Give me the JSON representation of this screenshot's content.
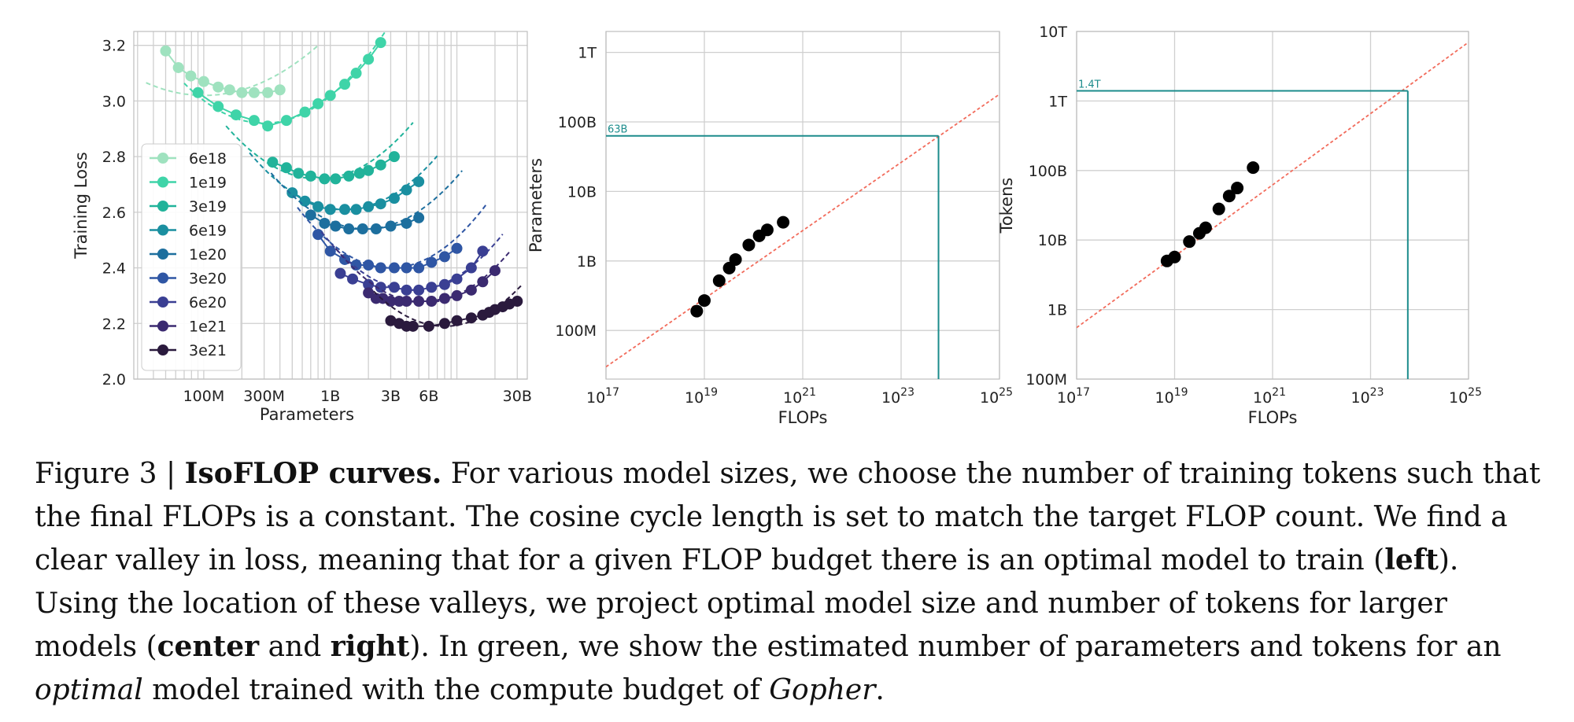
{
  "chart_data": [
    {
      "type": "line",
      "ylabel": "Training Loss",
      "xlabel": "Parameters",
      "xscale": "log",
      "xlim": [
        28000000.0,
        36000000000.0
      ],
      "ylim": [
        2.0,
        3.25
      ],
      "yticks": [
        2.0,
        2.2,
        2.4,
        2.6,
        2.8,
        3.0,
        3.2
      ],
      "ytick_labels": [
        "2.0",
        "2.2",
        "2.4",
        "2.6",
        "2.8",
        "3.0",
        "3.2"
      ],
      "xticks": [
        100000000.0,
        300000000.0,
        1000000000.0,
        3000000000.0,
        6000000000.0,
        30000000000.0
      ],
      "xtick_labels": [
        "100M",
        "300M",
        "1B",
        "3B",
        "6B",
        "30B"
      ],
      "grid": true,
      "legend_position": "center-left",
      "series": [
        {
          "name": "6e18",
          "color": "#9fe2bf",
          "fit": {
            "a": 0.055,
            "xmin": 100000000.0,
            "amin": 3.02,
            "range": [
              35000000.0,
              800000000.0
            ]
          },
          "points": [
            [
              50000000.0,
              3.18
            ],
            [
              63000000.0,
              3.12
            ],
            [
              79000000.0,
              3.09
            ],
            [
              100000000.0,
              3.07
            ],
            [
              130000000.0,
              3.05
            ],
            [
              160000000.0,
              3.04
            ],
            [
              200000000.0,
              3.03
            ],
            [
              250000000.0,
              3.03
            ],
            [
              320000000.0,
              3.03
            ],
            [
              400000000.0,
              3.04
            ]
          ]
        },
        {
          "name": "1e19",
          "color": "#3fd4a8",
          "fit": {
            "a": 0.09,
            "xmin": 300000000.0,
            "amin": 2.92,
            "range": [
              70000000.0,
              4000000000.0
            ]
          },
          "points": [
            [
              90000000.0,
              3.03
            ],
            [
              130000000.0,
              2.98
            ],
            [
              180000000.0,
              2.95
            ],
            [
              250000000.0,
              2.93
            ],
            [
              320000000.0,
              2.91
            ],
            [
              450000000.0,
              2.93
            ],
            [
              630000000.0,
              2.96
            ],
            [
              800000000.0,
              2.99
            ],
            [
              1000000000.0,
              3.02
            ],
            [
              1300000000.0,
              3.06
            ],
            [
              1600000000.0,
              3.1
            ],
            [
              2000000000.0,
              3.15
            ],
            [
              2500000000.0,
              3.21
            ]
          ]
        },
        {
          "name": "3e19",
          "color": "#21b39a",
          "fit": {
            "a": 0.09,
            "xmin": 800000000.0,
            "amin": 2.72,
            "range": [
              150000000.0,
              4500000000.0
            ]
          },
          "points": [
            [
              350000000.0,
              2.78
            ],
            [
              450000000.0,
              2.76
            ],
            [
              560000000.0,
              2.74
            ],
            [
              700000000.0,
              2.73
            ],
            [
              900000000.0,
              2.72
            ],
            [
              1100000000.0,
              2.72
            ],
            [
              1400000000.0,
              2.73
            ],
            [
              1700000000.0,
              2.74
            ],
            [
              2000000000.0,
              2.75
            ],
            [
              2500000000.0,
              2.77
            ],
            [
              3200000000.0,
              2.8
            ]
          ]
        },
        {
          "name": "6e19",
          "color": "#1a8fa0",
          "fit": {
            "a": 0.09,
            "xmin": 1300000000.0,
            "amin": 2.61,
            "range": [
              230000000.0,
              7000000000.0
            ]
          },
          "points": [
            [
              500000000.0,
              2.67
            ],
            [
              630000000.0,
              2.64
            ],
            [
              800000000.0,
              2.62
            ],
            [
              1000000000.0,
              2.61
            ],
            [
              1300000000.0,
              2.61
            ],
            [
              1600000000.0,
              2.61
            ],
            [
              2000000000.0,
              2.62
            ],
            [
              2500000000.0,
              2.63
            ],
            [
              3200000000.0,
              2.65
            ],
            [
              4000000000.0,
              2.68
            ],
            [
              5000000000.0,
              2.71
            ]
          ]
        },
        {
          "name": "1e20",
          "color": "#1d6f9e",
          "fit": {
            "a": 0.09,
            "xmin": 1900000000.0,
            "amin": 2.54,
            "range": [
              340000000.0,
              11000000000.0
            ]
          },
          "points": [
            [
              700000000.0,
              2.59
            ],
            [
              900000000.0,
              2.56
            ],
            [
              1100000000.0,
              2.55
            ],
            [
              1400000000.0,
              2.54
            ],
            [
              1800000000.0,
              2.54
            ],
            [
              2300000000.0,
              2.54
            ],
            [
              3000000000.0,
              2.55
            ],
            [
              4000000000.0,
              2.56
            ],
            [
              5000000000.0,
              2.58
            ]
          ]
        },
        {
          "name": "3e20",
          "color": "#2f56a4",
          "fit": {
            "a": 0.1,
            "xmin": 3000000000.0,
            "amin": 2.4,
            "range": [
              550000000.0,
              17000000000.0
            ]
          },
          "points": [
            [
              800000000.0,
              2.52
            ],
            [
              1000000000.0,
              2.46
            ],
            [
              1300000000.0,
              2.43
            ],
            [
              1600000000.0,
              2.41
            ],
            [
              2000000000.0,
              2.41
            ],
            [
              2500000000.0,
              2.4
            ],
            [
              3200000000.0,
              2.4
            ],
            [
              4000000000.0,
              2.4
            ],
            [
              5000000000.0,
              2.4
            ],
            [
              6300000000.0,
              2.42
            ],
            [
              8000000000.0,
              2.44
            ],
            [
              10000000000.0,
              2.47
            ]
          ]
        },
        {
          "name": "6e20",
          "color": "#3a3f93",
          "fit": {
            "a": 0.1,
            "xmin": 4500000000.0,
            "amin": 2.32,
            "range": [
              850000000.0,
              23000000000.0
            ]
          },
          "points": [
            [
              1200000000.0,
              2.38
            ],
            [
              1500000000.0,
              2.36
            ],
            [
              2000000000.0,
              2.34
            ],
            [
              2500000000.0,
              2.33
            ],
            [
              3200000000.0,
              2.33
            ],
            [
              4000000000.0,
              2.32
            ],
            [
              5000000000.0,
              2.32
            ],
            [
              6300000000.0,
              2.33
            ],
            [
              8000000000.0,
              2.34
            ],
            [
              10000000000.0,
              2.36
            ],
            [
              13000000000.0,
              2.4
            ],
            [
              16000000000.0,
              2.46
            ]
          ]
        },
        {
          "name": "1e21",
          "color": "#3b2a70",
          "fit": {
            "a": 0.1,
            "xmin": 5500000000.0,
            "amin": 2.275,
            "range": [
              1100000000.0,
              26000000000.0
            ]
          },
          "points": [
            [
              2000000000.0,
              2.31
            ],
            [
              2300000000.0,
              2.29
            ],
            [
              2600000000.0,
              2.29
            ],
            [
              3000000000.0,
              2.28
            ],
            [
              3500000000.0,
              2.28
            ],
            [
              4000000000.0,
              2.28
            ],
            [
              5000000000.0,
              2.28
            ],
            [
              6300000000.0,
              2.28
            ],
            [
              8000000000.0,
              2.29
            ],
            [
              10000000000.0,
              2.3
            ],
            [
              13000000000.0,
              2.32
            ],
            [
              16000000000.0,
              2.35
            ],
            [
              20000000000.0,
              2.39
            ]
          ]
        },
        {
          "name": "3e21",
          "color": "#2a1a3d",
          "fit": {
            "a": 0.1,
            "xmin": 8000000000.0,
            "amin": 2.19,
            "range": [
              2200000000.0,
              33000000000.0
            ]
          },
          "points": [
            [
              3000000000.0,
              2.21
            ],
            [
              3500000000.0,
              2.2
            ],
            [
              4000000000.0,
              2.19
            ],
            [
              4500000000.0,
              2.19
            ],
            [
              6000000000.0,
              2.19
            ],
            [
              8000000000.0,
              2.2
            ],
            [
              10000000000.0,
              2.21
            ],
            [
              13000000000.0,
              2.22
            ],
            [
              16000000000.0,
              2.23
            ],
            [
              18000000000.0,
              2.24
            ],
            [
              20000000000.0,
              2.25
            ],
            [
              23000000000.0,
              2.26
            ],
            [
              26000000000.0,
              2.27
            ],
            [
              30000000000.0,
              2.28
            ]
          ]
        }
      ]
    },
    {
      "type": "scatter",
      "ylabel": "Parameters",
      "xlabel": "FLOPs",
      "xscale": "log",
      "yscale": "log",
      "xlim": [
        1e+17,
        1e+25
      ],
      "ylim": [
        20000000.0,
        2000000000000.0
      ],
      "xticks": [
        1e+17,
        1e+19,
        1e+21,
        1e+23,
        1e+25
      ],
      "xtick_base": "10",
      "xtick_exps": [
        "17",
        "19",
        "21",
        "23",
        "25"
      ],
      "yticks": [
        100000000.0,
        1000000000.0,
        10000000000.0,
        100000000000.0,
        1000000000000.0
      ],
      "ytick_labels": [
        "100M",
        "1B",
        "10B",
        "100B",
        "1T"
      ],
      "fit_line": [
        [
          1e+17,
          30000000.0
        ],
        [
          1e+25,
          250000000000.0
        ]
      ],
      "fit_color": "#f26b5b",
      "annotation": {
        "label": "63B",
        "x": 5.76e+23,
        "y": 63000000000.0,
        "color": "#1c8c8c"
      },
      "points": [
        [
          7e+18,
          190000000.0
        ],
        [
          1e+19,
          270000000.0
        ],
        [
          2e+19,
          520000000.0
        ],
        [
          3.2e+19,
          790000000.0
        ],
        [
          4.3e+19,
          1050000000.0
        ],
        [
          8e+19,
          1700000000.0
        ],
        [
          1.3e+20,
          2300000000.0
        ],
        [
          1.9e+20,
          2800000000.0
        ],
        [
          4e+20,
          3600000000.0
        ]
      ]
    },
    {
      "type": "scatter",
      "ylabel": "Tokens",
      "xlabel": "FLOPs",
      "xscale": "log",
      "yscale": "log",
      "xlim": [
        1e+17,
        1e+25
      ],
      "ylim": [
        100000000.0,
        10000000000000.0
      ],
      "xticks": [
        1e+17,
        1e+19,
        1e+21,
        1e+23,
        1e+25
      ],
      "xtick_base": "10",
      "xtick_exps": [
        "17",
        "19",
        "21",
        "23",
        "25"
      ],
      "yticks": [
        100000000.0,
        1000000000.0,
        10000000000.0,
        100000000000.0,
        1000000000000.0,
        10000000000000.0
      ],
      "ytick_labels": [
        "100M",
        "1B",
        "10B",
        "100B",
        "1T",
        "10T"
      ],
      "fit_line": [
        [
          1e+17,
          550000000.0
        ],
        [
          1e+25,
          7000000000000.0
        ]
      ],
      "fit_color": "#f26b5b",
      "annotation": {
        "label": "1.4T",
        "x": 5.76e+23,
        "y": 1400000000000.0,
        "color": "#1c8c8c"
      },
      "points": [
        [
          7e+18,
          5000000000.0
        ],
        [
          1e+19,
          5700000000.0
        ],
        [
          2e+19,
          9500000000.0
        ],
        [
          3.2e+19,
          12500000000.0
        ],
        [
          4.3e+19,
          15000000000.0
        ],
        [
          8e+19,
          28000000000.0
        ],
        [
          1.3e+20,
          43000000000.0
        ],
        [
          1.9e+20,
          56000000000.0
        ],
        [
          4e+20,
          110000000000.0
        ]
      ]
    }
  ],
  "caption": {
    "figure_label": "Figure 3 | ",
    "title": "IsoFLOP curves.",
    "text_1": " For various model sizes, we choose the number of training tokens such that the final FLOPs is a constant. The cosine cycle length is set to match the target FLOP count. We find a clear valley in loss, meaning that for a given FLOP budget there is an optimal model to train (",
    "bold_left": "left",
    "text_2": "). Using the location of these valleys, we project optimal model size and number of tokens for larger models (",
    "bold_center": "center",
    "text_3": " and ",
    "bold_right": "right",
    "text_4": "). In green, we show the estimated number of parameters and tokens for an ",
    "italic_optimal": "optimal",
    "text_5": " model trained with the compute budget of ",
    "italic_gopher": "Gopher",
    "text_6": "."
  }
}
